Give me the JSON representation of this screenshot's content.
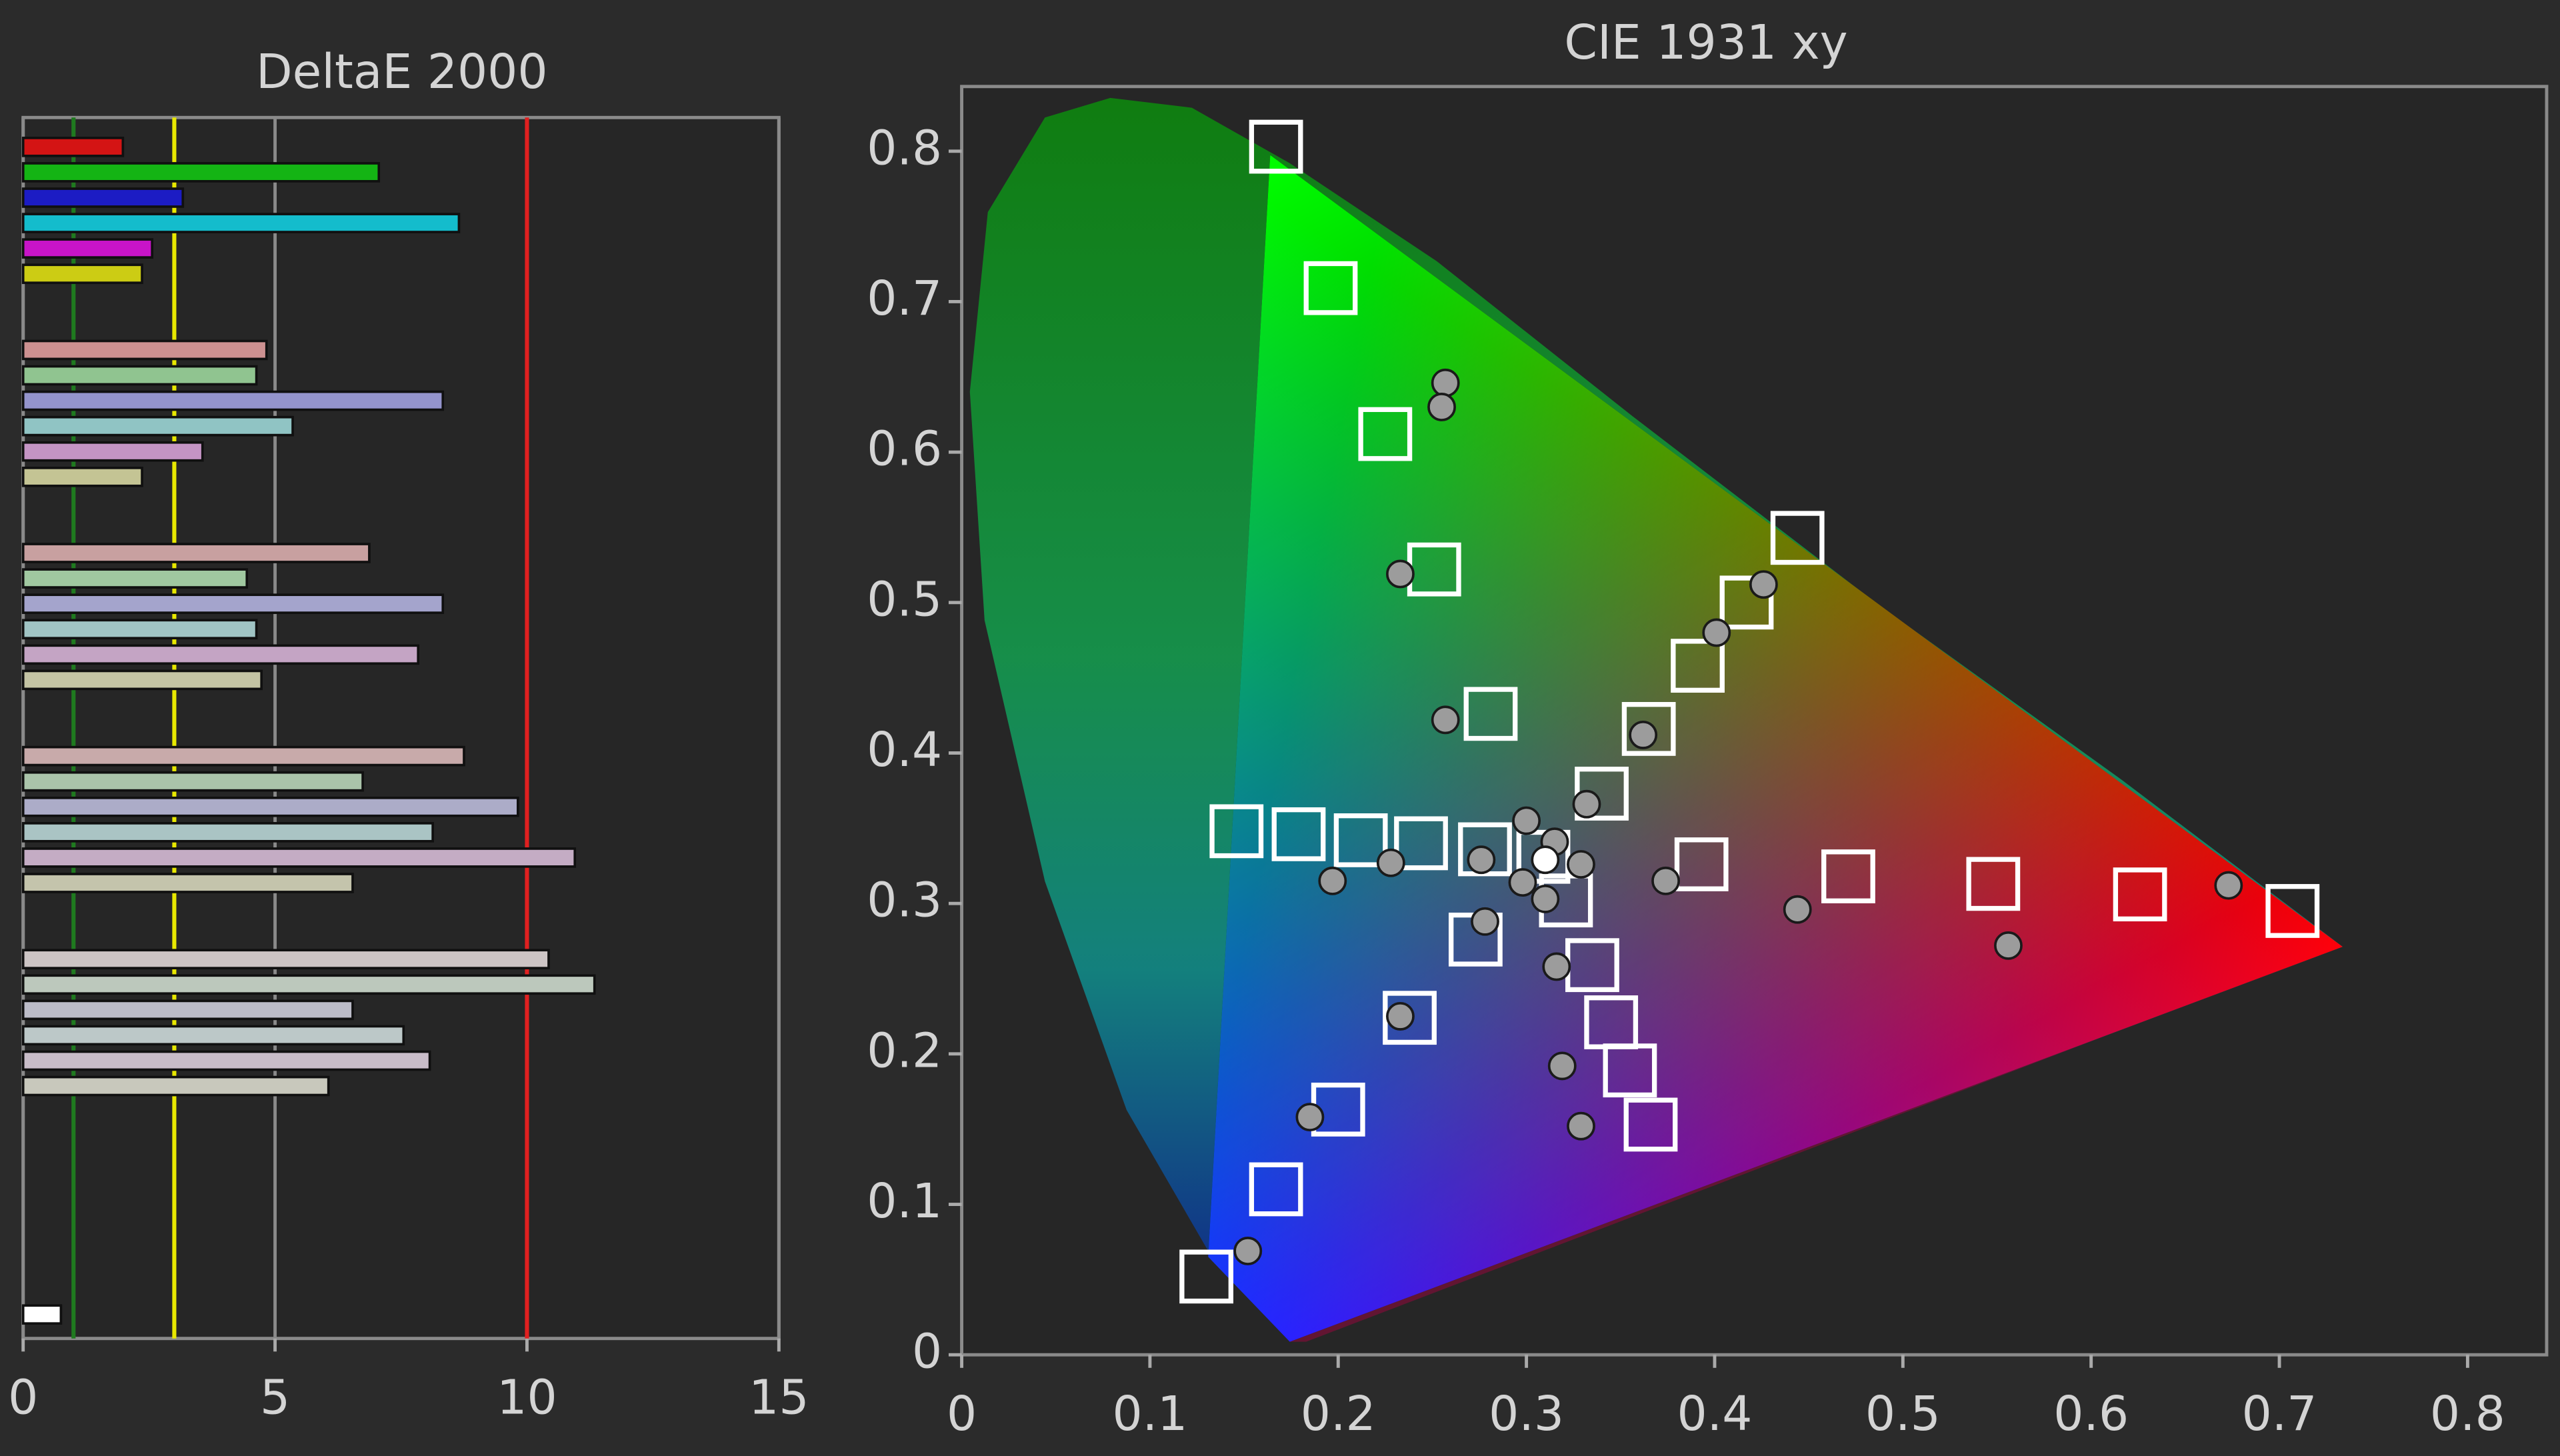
{
  "chart_data": [
    {
      "type": "bar",
      "orientation": "horizontal",
      "title": "DeltaE 2000",
      "values": [
        1.98,
        7.06,
        3.17,
        8.65,
        2.56,
        2.36,
        4.83,
        4.63,
        8.33,
        5.35,
        3.56,
        2.36,
        6.87,
        4.44,
        8.33,
        4.63,
        7.84,
        4.73,
        8.75,
        6.74,
        9.82,
        8.13,
        10.95,
        6.54,
        10.43,
        11.34,
        6.54,
        7.55,
        8.07,
        6.06,
        0.75
      ],
      "colors": [
        "#d41414",
        "#14b414",
        "#1c1cc4",
        "#14bccc",
        "#c814c8",
        "#cccc14",
        "#cc9090",
        "#90c490",
        "#9494cc",
        "#90c4c4",
        "#c494c4",
        "#c4c494",
        "#c8a0a0",
        "#a0c8a0",
        "#a4a4cc",
        "#a0c4c4",
        "#c4a4c4",
        "#c4c4a4",
        "#c8aaaa",
        "#aac4aa",
        "#acacc8",
        "#aac4c4",
        "#c4acc4",
        "#c4c4ac",
        "#ccc4c4",
        "#bcc8bc",
        "#bcbcc8",
        "#bcc8c8",
        "#c8bcc8",
        "#c8c8bc",
        "#ffffff"
      ],
      "xlim": [
        0,
        15
      ],
      "xticks": [
        0,
        5,
        10,
        15
      ],
      "grid": true,
      "reference_lines": [
        {
          "value": 1,
          "color": "#1f7a1f"
        },
        {
          "value": 3,
          "color": "#e8e800"
        },
        {
          "value": 10,
          "color": "#e02020"
        }
      ]
    },
    {
      "type": "scatter",
      "title": "CIE 1931 xy",
      "xlim": [
        0,
        0.842
      ],
      "ylim": [
        0,
        0.843
      ],
      "xticks": [
        0,
        0.1,
        0.2,
        0.3,
        0.4,
        0.5,
        0.6,
        0.7,
        0.8
      ],
      "yticks": [
        0,
        0.1,
        0.2,
        0.3,
        0.4,
        0.5,
        0.6,
        0.7,
        0.8
      ],
      "series": [
        {
          "color": "#ffffff",
          "marker": "square",
          "x": [
            0.167,
            0.196,
            0.225,
            0.251,
            0.281,
            0.444,
            0.417,
            0.391,
            0.365,
            0.34,
            0.146,
            0.179,
            0.212,
            0.244,
            0.278,
            0.309,
            0.393,
            0.471,
            0.548,
            0.626,
            0.707,
            0.321,
            0.273,
            0.335,
            0.345,
            0.355,
            0.366,
            0.238,
            0.2,
            0.167,
            0.13
          ],
          "values": [
            0.803,
            0.709,
            0.612,
            0.522,
            0.426,
            0.543,
            0.5,
            0.458,
            0.416,
            0.373,
            0.348,
            0.346,
            0.342,
            0.34,
            0.336,
            0.331,
            0.326,
            0.318,
            0.313,
            0.306,
            0.295,
            0.302,
            0.276,
            0.259,
            0.221,
            0.189,
            0.153,
            0.224,
            0.163,
            0.11,
            0.052
          ]
        },
        {
          "color": "#9c9c9c",
          "marker": "circle",
          "x": [
            0.257,
            0.255,
            0.233,
            0.257,
            0.426,
            0.401,
            0.362,
            0.332,
            0.3,
            0.315,
            0.329,
            0.276,
            0.228,
            0.197,
            0.298,
            0.31,
            0.374,
            0.444,
            0.556,
            0.673,
            0.278,
            0.316,
            0.233,
            0.319,
            0.329,
            0.185,
            0.152
          ],
          "values": [
            0.646,
            0.63,
            0.519,
            0.422,
            0.512,
            0.48,
            0.412,
            0.366,
            0.355,
            0.341,
            0.326,
            0.329,
            0.327,
            0.315,
            0.314,
            0.303,
            0.315,
            0.296,
            0.272,
            0.312,
            0.288,
            0.258,
            0.225,
            0.192,
            0.152,
            0.158,
            0.069
          ]
        },
        {
          "color": "#ffffff",
          "marker": "circle",
          "x": [
            0.31
          ],
          "values": [
            0.329
          ]
        }
      ]
    }
  ]
}
